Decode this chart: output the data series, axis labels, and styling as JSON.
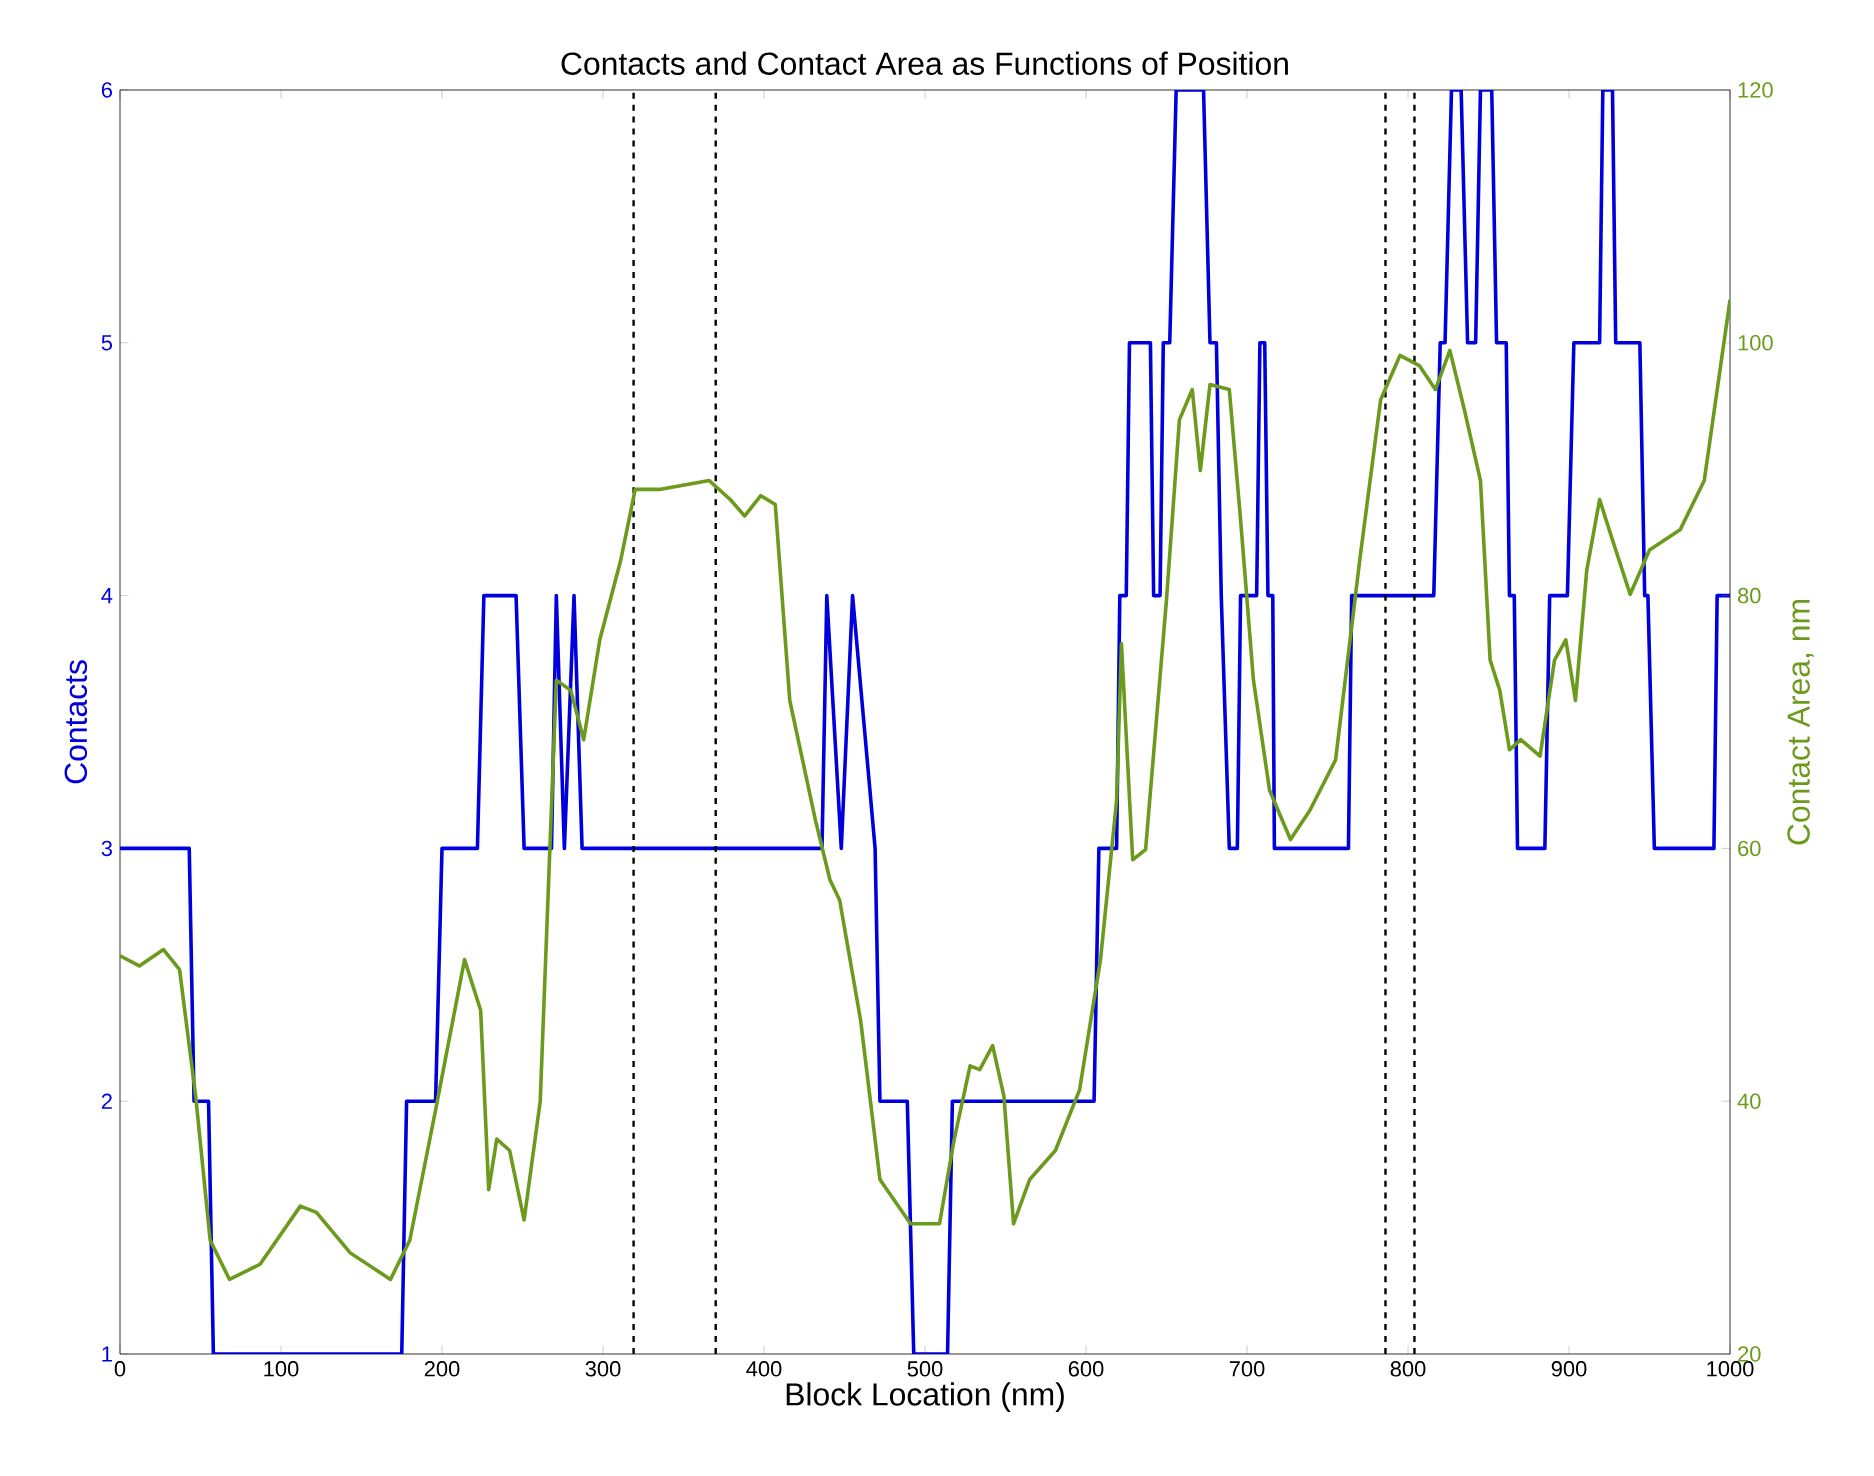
{
  "chart_data": {
    "type": "line",
    "title": "Contacts and Contact Area as Functions of Position",
    "xlabel": "Block Location (nm)",
    "ylabel": "Contacts",
    "y2label": "Contact Area, nm",
    "xlim": [
      0,
      1000
    ],
    "xticks": [
      0,
      100,
      200,
      300,
      400,
      500,
      600,
      700,
      800,
      900,
      1000
    ],
    "ylim": [
      1,
      6
    ],
    "yticks": [
      1,
      2,
      3,
      4,
      5,
      6
    ],
    "y2lim": [
      20,
      120
    ],
    "y2ticks": [
      20,
      40,
      60,
      80,
      100,
      120
    ],
    "grid": false,
    "marker": "none",
    "series": [
      {
        "color": "#0000dd",
        "line_style": "solid",
        "x": [
          0,
          43,
          46,
          55,
          58,
          175,
          178,
          196,
          200,
          222,
          226,
          246,
          251,
          268,
          271,
          276,
          282,
          287,
          436,
          439,
          448,
          455,
          469,
          472,
          489,
          493,
          514,
          517,
          605,
          608,
          619,
          621,
          625,
          627,
          640,
          642,
          646,
          648,
          652,
          656,
          673,
          677,
          681,
          684,
          689,
          694,
          696,
          706,
          708,
          711,
          713,
          716,
          717,
          763,
          765,
          816,
          820,
          823,
          827,
          833,
          837,
          842,
          845,
          852,
          855,
          861,
          863,
          866,
          868,
          885,
          888,
          899,
          903,
          919,
          921,
          927,
          929,
          944,
          947,
          949,
          953,
          990,
          992,
          1000
        ],
        "values": [
          3,
          3,
          2,
          2,
          1,
          1,
          2,
          2,
          3,
          3,
          4,
          4,
          3,
          3,
          4,
          3,
          4,
          3,
          3,
          4,
          3,
          4,
          3,
          2,
          2,
          1,
          1,
          2,
          2,
          3,
          3,
          4,
          4,
          5,
          5,
          4,
          4,
          5,
          5,
          6,
          6,
          5,
          5,
          4,
          3,
          3,
          4,
          4,
          5,
          5,
          4,
          4,
          3,
          3,
          4,
          4,
          5,
          5,
          6,
          6,
          5,
          5,
          6,
          6,
          5,
          5,
          4,
          4,
          3,
          3,
          4,
          4,
          5,
          5,
          6,
          6,
          5,
          5,
          4,
          4,
          3,
          3,
          4,
          4
        ]
      },
      {
        "color": "#6b9a1c",
        "axis": "y2",
        "line_style": "solid",
        "x": [
          0,
          12,
          27,
          37,
          47,
          56,
          68,
          87,
          112,
          122,
          143,
          168,
          180,
          196,
          214,
          224,
          229,
          234,
          242,
          251,
          261,
          271,
          280,
          288,
          298,
          311,
          320,
          335,
          366,
          379,
          388,
          398,
          407,
          416,
          432,
          441,
          447,
          460,
          472,
          491,
          509,
          518,
          528,
          534,
          542,
          549,
          555,
          565,
          581,
          596,
          609,
          619,
          622,
          629,
          637,
          650,
          658,
          666,
          671,
          677,
          689,
          696,
          704,
          714,
          727,
          739,
          755,
          770,
          783,
          795,
          807,
          817,
          826,
          835,
          845,
          851,
          857,
          863,
          870,
          882,
          891,
          898,
          904,
          911,
          919,
          927,
          938,
          950,
          969,
          984,
          1000
        ],
        "values": [
          51.5,
          50.7,
          52,
          50.4,
          40.4,
          29,
          25.9,
          27.1,
          31.7,
          31.2,
          28,
          25.9,
          29,
          39.3,
          51.2,
          47.2,
          33,
          37,
          36.1,
          30.6,
          40,
          73.3,
          72.5,
          68.6,
          76.5,
          82.8,
          88.4,
          88.4,
          89.1,
          87.6,
          86.3,
          87.9,
          87.2,
          71.7,
          62.2,
          57.5,
          55.9,
          46.4,
          33.8,
          30.3,
          30.3,
          36.9,
          42.8,
          42.5,
          44.4,
          40.4,
          30.3,
          33.8,
          36.1,
          40.9,
          51.2,
          63.8,
          76.2,
          59.1,
          59.9,
          79.7,
          93.9,
          96.3,
          89.9,
          96.7,
          96.3,
          86,
          73.3,
          64.6,
          60.7,
          63,
          67,
          82.8,
          95.5,
          99,
          98.2,
          96.3,
          99.4,
          94.7,
          89.1,
          74.9,
          72.5,
          67.8,
          68.6,
          67.3,
          74.9,
          76.5,
          71.7,
          82,
          87.6,
          84.4,
          80.1,
          83.6,
          85.2,
          89.1,
          103.4
        ]
      }
    ],
    "ref_lines": [
      {
        "axis": "x",
        "value": 319,
        "color": "#000000",
        "line_style": "dashed"
      },
      {
        "axis": "x",
        "value": 370,
        "color": "#000000",
        "line_style": "dashed"
      },
      {
        "axis": "x",
        "value": 786,
        "color": "#000000",
        "line_style": "dashed"
      },
      {
        "axis": "x",
        "value": 804,
        "color": "#000000",
        "line_style": "dashed"
      }
    ]
  }
}
